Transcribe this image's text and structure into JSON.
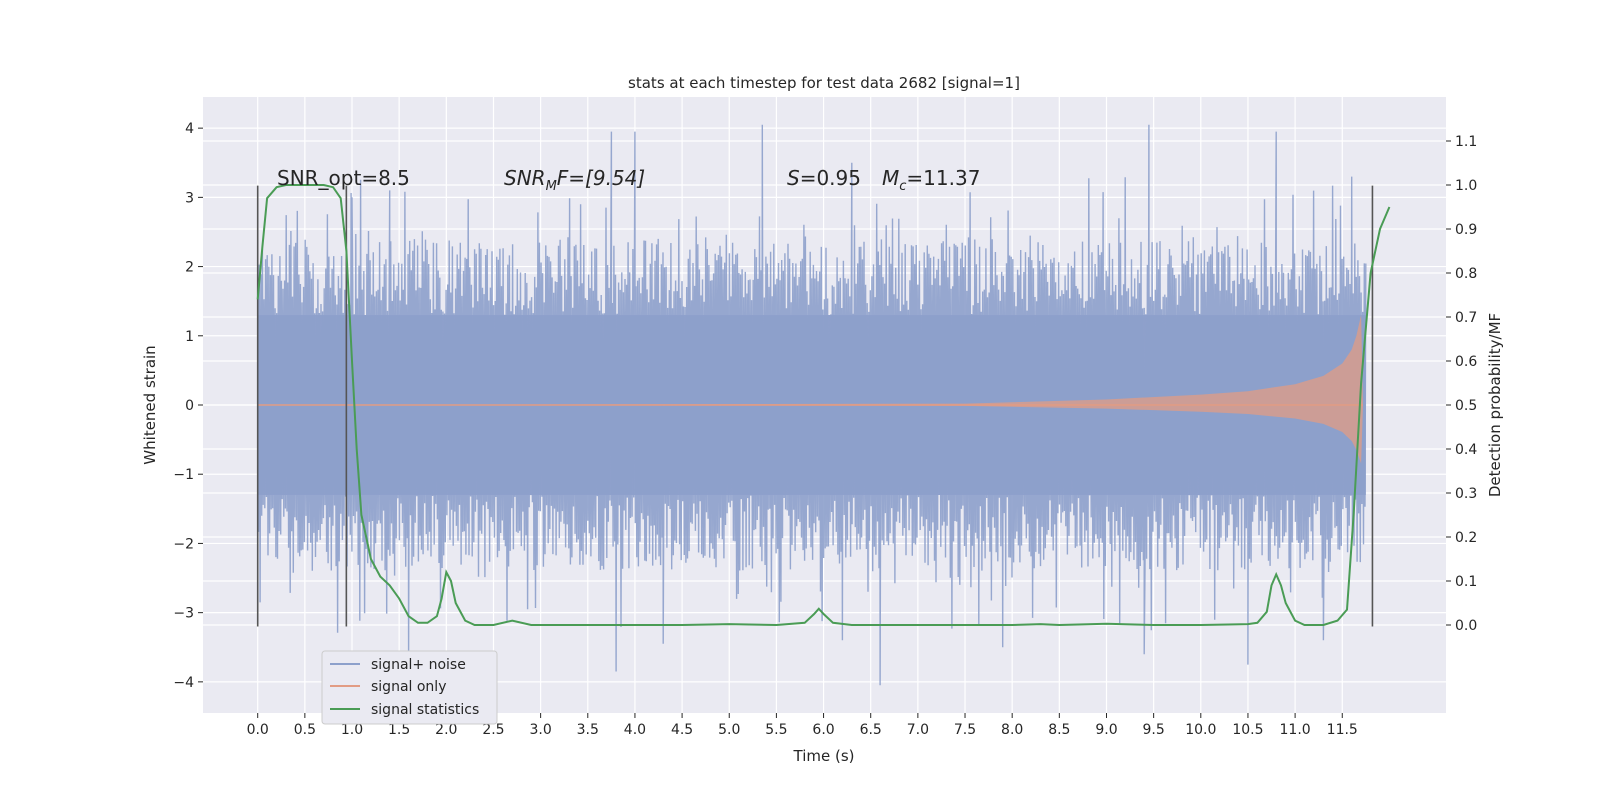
{
  "chart_data": {
    "type": "line",
    "title": "stats at each timestep for test data 2682 [signal=1]",
    "xlabel": "Time (s)",
    "ylabel": "Whitened strain",
    "ylabel_right": "Detection probability/MF",
    "xlim": [
      -0.58,
      12.6
    ],
    "ylim": [
      -4.45,
      4.45
    ],
    "ylim_right": [
      -0.2,
      1.2
    ],
    "x_ticks": [
      "0.0",
      "0.5",
      "1.0",
      "1.5",
      "2.0",
      "2.5",
      "3.0",
      "3.5",
      "4.0",
      "4.5",
      "5.0",
      "5.5",
      "6.0",
      "6.5",
      "7.0",
      "7.5",
      "8.0",
      "8.5",
      "9.0",
      "9.5",
      "10.0",
      "10.5",
      "11.0",
      "11.5"
    ],
    "y_ticks": [
      "4",
      "3",
      "2",
      "1",
      "0",
      "−1",
      "−2",
      "−3",
      "−4"
    ],
    "y_ticks_right": [
      "1.1",
      "1.0",
      "0.9",
      "0.8",
      "0.7",
      "0.6",
      "0.5",
      "0.4",
      "0.3",
      "0.2",
      "0.1",
      "0.0"
    ],
    "grid": true,
    "legend_position": "lower-left",
    "annotations": {
      "snr_opt": "SNR_opt=8.5",
      "snr_mf_symbol": "SNR",
      "snr_mf_sub": "M",
      "snr_mf_rest": "F=[9.54]",
      "s_symbol": "S",
      "s_rest": "=0.95",
      "mc_symbol": "M",
      "mc_sub": "c",
      "mc_rest": "=11.37"
    },
    "vertical_markers": [
      0.0,
      0.94,
      11.82
    ],
    "noise_profile": {
      "t": [
        0.0,
        11.75
      ],
      "core_band": [
        -1.3,
        1.3
      ],
      "typical_band": [
        -2.2,
        2.3
      ],
      "peaks_high": [
        [
          1.0,
          3.0
        ],
        [
          1.4,
          3.1
        ],
        [
          3.75,
          3.95
        ],
        [
          4.0,
          3.95
        ],
        [
          5.35,
          4.05
        ],
        [
          6.3,
          3.5
        ],
        [
          9.45,
          4.05
        ],
        [
          10.8,
          3.95
        ],
        [
          11.6,
          3.3
        ]
      ],
      "peaks_low": [
        [
          1.6,
          -3.6
        ],
        [
          3.8,
          -3.85
        ],
        [
          4.3,
          -3.45
        ],
        [
          6.2,
          -3.4
        ],
        [
          6.6,
          -4.05
        ],
        [
          7.9,
          -3.5
        ],
        [
          9.4,
          -3.6
        ],
        [
          10.5,
          -3.75
        ],
        [
          11.3,
          -3.4
        ]
      ]
    },
    "series": [
      {
        "name": "signal+ noise",
        "color": "#8da0cb",
        "axis": "left"
      },
      {
        "name": "signal only",
        "color": "#e29c84",
        "axis": "left",
        "envelope_x": [
          0.0,
          7.5,
          8.0,
          9.0,
          10.0,
          10.5,
          11.0,
          11.3,
          11.5,
          11.6,
          11.65,
          11.7,
          11.72
        ],
        "envelope_y": [
          0.0,
          0.02,
          0.04,
          0.08,
          0.15,
          0.2,
          0.3,
          0.42,
          0.6,
          0.8,
          1.0,
          1.3,
          0.0
        ]
      },
      {
        "name": "signal statistics",
        "color": "#4a9c55",
        "axis": "right",
        "x": [
          0.0,
          0.05,
          0.1,
          0.2,
          0.3,
          0.5,
          0.7,
          0.8,
          0.88,
          0.94,
          1.0,
          1.05,
          1.1,
          1.15,
          1.2,
          1.3,
          1.4,
          1.5,
          1.6,
          1.7,
          1.8,
          1.9,
          1.95,
          2.0,
          2.05,
          2.1,
          2.2,
          2.3,
          2.5,
          2.7,
          2.9,
          3.5,
          4.5,
          5.0,
          5.5,
          5.8,
          5.9,
          5.95,
          6.0,
          6.1,
          6.3,
          7.0,
          8.0,
          8.3,
          8.5,
          9.0,
          9.5,
          10.0,
          10.5,
          10.6,
          10.7,
          10.75,
          10.8,
          10.85,
          10.9,
          11.0,
          11.1,
          11.3,
          11.45,
          11.55,
          11.62,
          11.7,
          11.8,
          11.9,
          12.0
        ],
        "values": [
          0.74,
          0.86,
          0.97,
          0.995,
          1.0,
          1.0,
          1.0,
          0.995,
          0.97,
          0.85,
          0.6,
          0.4,
          0.25,
          0.2,
          0.15,
          0.11,
          0.09,
          0.06,
          0.02,
          0.005,
          0.005,
          0.02,
          0.06,
          0.12,
          0.1,
          0.05,
          0.01,
          0.0,
          0.0,
          0.01,
          0.0,
          0.0,
          0.0,
          0.002,
          0.0,
          0.005,
          0.025,
          0.037,
          0.025,
          0.005,
          0.0,
          0.0,
          0.0,
          0.002,
          0.0,
          0.003,
          0.0,
          0.0,
          0.002,
          0.005,
          0.03,
          0.09,
          0.115,
          0.09,
          0.05,
          0.01,
          0.0,
          0.0,
          0.01,
          0.035,
          0.25,
          0.55,
          0.8,
          0.9,
          0.95
        ]
      }
    ]
  }
}
